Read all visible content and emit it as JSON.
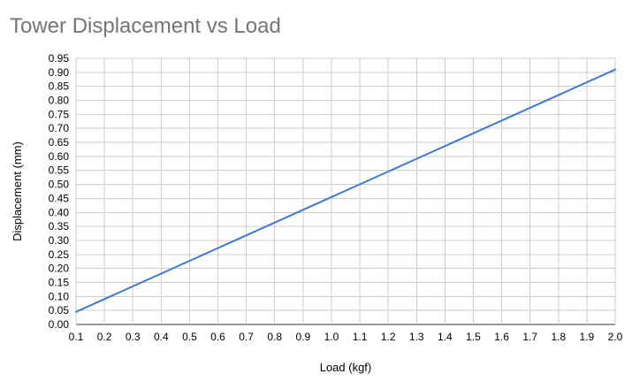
{
  "chart_data": {
    "type": "line",
    "title": "Tower Displacement vs Load",
    "xlabel": "Load (kgf)",
    "ylabel": "Displacement (mm)",
    "xlim": [
      0.1,
      2.0
    ],
    "ylim": [
      0.0,
      0.95
    ],
    "x_ticks": [
      "0.1",
      "0.2",
      "0.3",
      "0.4",
      "0.5",
      "0.6",
      "0.7",
      "0.8",
      "0.9",
      "1.0",
      "1.1",
      "1.2",
      "1.3",
      "1.4",
      "1.5",
      "1.6",
      "1.7",
      "1.8",
      "1.9",
      "2.0"
    ],
    "y_ticks": [
      "0.00",
      "0.05",
      "0.10",
      "0.15",
      "0.20",
      "0.25",
      "0.30",
      "0.35",
      "0.40",
      "0.45",
      "0.50",
      "0.55",
      "0.60",
      "0.65",
      "0.70",
      "0.75",
      "0.80",
      "0.85",
      "0.90",
      "0.95"
    ],
    "grid": true,
    "legend": "none",
    "series": [
      {
        "color": "#3c78d8",
        "x": [
          0.1,
          2.0
        ],
        "y": [
          0.045,
          0.91
        ]
      }
    ]
  }
}
